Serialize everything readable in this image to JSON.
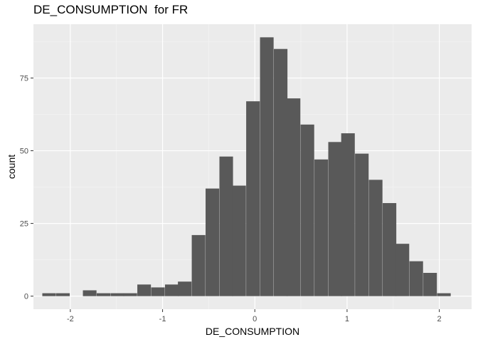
{
  "chart_data": {
    "type": "bar",
    "subtype": "histogram",
    "title": "DE_CONSUMPTION  for FR",
    "xlabel": "DE_CONSUMPTION",
    "ylabel": "count",
    "xlim": [
      -2.4,
      2.35
    ],
    "ylim": [
      -4.5,
      93.5
    ],
    "x_ticks": [
      -2,
      -1,
      0,
      1,
      2
    ],
    "x_tick_labels": [
      "-2",
      "-1",
      "0",
      "1",
      "2"
    ],
    "y_ticks": [
      0,
      25,
      50,
      75
    ],
    "y_tick_labels": [
      "0",
      "25",
      "50",
      "75"
    ],
    "grid": true,
    "background": "#ebebeb",
    "bar_color": "#595959",
    "bin_width": 0.1474,
    "bin_centers": [
      -2.23,
      -2.08,
      -1.94,
      -1.79,
      -1.64,
      -1.49,
      -1.35,
      -1.2,
      -1.05,
      -0.9,
      -0.76,
      -0.61,
      -0.46,
      -0.31,
      -0.17,
      -0.02,
      0.13,
      0.28,
      0.42,
      0.57,
      0.72,
      0.87,
      1.01,
      1.16,
      1.31,
      1.46,
      1.6,
      1.75,
      1.9,
      2.05
    ],
    "counts": [
      1,
      1,
      0,
      2,
      1,
      1,
      1,
      4,
      3,
      4,
      5,
      21,
      37,
      48,
      38,
      67,
      89,
      85,
      68,
      59,
      47,
      53,
      56,
      49,
      40,
      32,
      18,
      12,
      8,
      1
    ]
  }
}
